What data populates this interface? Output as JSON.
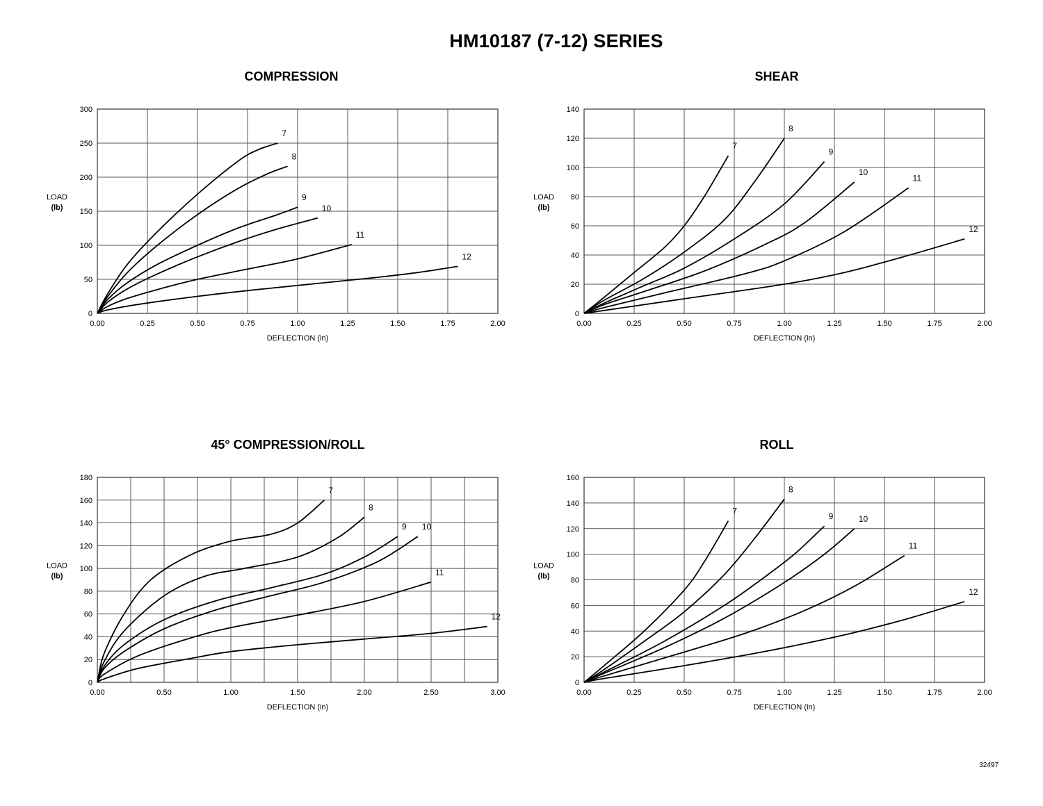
{
  "page": {
    "title": "HM10187 (7-12) SERIES",
    "doc_id": "32497"
  },
  "chart_data": [
    {
      "type": "line",
      "title": "COMPRESSION",
      "xlabel": "DEFLECTION (in)",
      "ylabel": [
        "LOAD",
        "(lb)"
      ],
      "xlim": [
        0,
        2.0
      ],
      "ylim": [
        0,
        300
      ],
      "xticks": [
        "0.00",
        "0.25",
        "0.50",
        "0.75",
        "1.00",
        "1.25",
        "1.50",
        "1.75",
        "2.00"
      ],
      "yticks": [
        "0",
        "50",
        "100",
        "150",
        "200",
        "250",
        "300"
      ],
      "grid": true,
      "series": [
        {
          "name": "7",
          "x": [
            0,
            0.05,
            0.15,
            0.3,
            0.5,
            0.7,
            0.8,
            0.9
          ],
          "y": [
            0,
            28,
            72,
            120,
            175,
            223,
            240,
            250
          ]
        },
        {
          "name": "8",
          "x": [
            0,
            0.05,
            0.15,
            0.3,
            0.5,
            0.7,
            0.85,
            0.95
          ],
          "y": [
            0,
            24,
            60,
            100,
            145,
            183,
            205,
            216
          ]
        },
        {
          "name": "9",
          "x": [
            0,
            0.05,
            0.15,
            0.3,
            0.5,
            0.7,
            0.9,
            1.0
          ],
          "y": [
            0,
            20,
            45,
            72,
            100,
            125,
            145,
            156
          ]
        },
        {
          "name": "10",
          "x": [
            0,
            0.05,
            0.15,
            0.3,
            0.5,
            0.7,
            0.9,
            1.1
          ],
          "y": [
            0,
            16,
            36,
            58,
            83,
            105,
            124,
            140
          ]
        },
        {
          "name": "11",
          "x": [
            0,
            0.05,
            0.15,
            0.3,
            0.5,
            0.75,
            1.0,
            1.27
          ],
          "y": [
            0,
            10,
            22,
            35,
            50,
            65,
            80,
            101
          ]
        },
        {
          "name": "12",
          "x": [
            0,
            0.05,
            0.2,
            0.5,
            0.8,
            1.1,
            1.4,
            1.6,
            1.8
          ],
          "y": [
            0,
            5,
            13,
            25,
            35,
            44,
            53,
            60,
            69
          ]
        }
      ]
    },
    {
      "type": "line",
      "title": "SHEAR",
      "xlabel": "DEFLECTION (in)",
      "ylabel": [
        "LOAD",
        "(lb)"
      ],
      "xlim": [
        0,
        2.0
      ],
      "ylim": [
        0,
        140
      ],
      "xticks": [
        "0.00",
        "0.25",
        "0.50",
        "0.75",
        "1.00",
        "1.25",
        "1.50",
        "1.75",
        "2.00"
      ],
      "yticks": [
        "0",
        "20",
        "40",
        "60",
        "80",
        "100",
        "120",
        "140"
      ],
      "grid": true,
      "series": [
        {
          "name": "7",
          "x": [
            0,
            0.1,
            0.25,
            0.4,
            0.5,
            0.6,
            0.72
          ],
          "y": [
            0,
            11,
            28,
            45,
            60,
            80,
            108
          ]
        },
        {
          "name": "8",
          "x": [
            0,
            0.1,
            0.3,
            0.5,
            0.7,
            0.85,
            1.0
          ],
          "y": [
            0,
            9,
            24,
            42,
            64,
            90,
            120
          ]
        },
        {
          "name": "9",
          "x": [
            0,
            0.1,
            0.3,
            0.5,
            0.75,
            1.0,
            1.2
          ],
          "y": [
            0,
            7,
            19,
            31,
            51,
            75,
            104
          ]
        },
        {
          "name": "10",
          "x": [
            0,
            0.1,
            0.3,
            0.6,
            0.9,
            1.1,
            1.35
          ],
          "y": [
            0,
            6,
            15,
            29,
            47,
            62,
            90
          ]
        },
        {
          "name": "11",
          "x": [
            0,
            0.1,
            0.4,
            0.8,
            1.0,
            1.3,
            1.62
          ],
          "y": [
            0,
            4,
            14,
            27,
            36,
            56,
            86
          ]
        },
        {
          "name": "12",
          "x": [
            0,
            0.1,
            0.5,
            1.0,
            1.3,
            1.6,
            1.9
          ],
          "y": [
            0,
            2,
            10,
            20,
            28,
            39,
            51
          ]
        }
      ]
    },
    {
      "type": "line",
      "title": "45° COMPRESSION/ROLL",
      "xlabel": "DEFLECTION (in)",
      "ylabel": [
        "LOAD",
        "(lb)"
      ],
      "xlim": [
        0,
        3.0
      ],
      "ylim": [
        0,
        180
      ],
      "xticks": [
        "0.00",
        "0.50",
        "1.00",
        "1.50",
        "2.00",
        "2.50",
        "3.00"
      ],
      "yticks": [
        "0",
        "20",
        "40",
        "60",
        "80",
        "100",
        "120",
        "140",
        "160",
        "180"
      ],
      "grid": true,
      "grid_x_step": 0.25,
      "series": [
        {
          "name": "7",
          "x": [
            0,
            0.05,
            0.2,
            0.4,
            0.7,
            1.0,
            1.3,
            1.5,
            1.7
          ],
          "y": [
            0,
            25,
            60,
            90,
            112,
            124,
            130,
            140,
            160
          ]
        },
        {
          "name": "8",
          "x": [
            0,
            0.05,
            0.2,
            0.5,
            0.8,
            1.1,
            1.5,
            1.8,
            2.0
          ],
          "y": [
            0,
            18,
            45,
            76,
            93,
            100,
            110,
            127,
            145
          ]
        },
        {
          "name": "9",
          "x": [
            0,
            0.05,
            0.2,
            0.5,
            0.9,
            1.3,
            1.7,
            2.0,
            2.25
          ],
          "y": [
            0,
            14,
            33,
            55,
            72,
            83,
            95,
            110,
            128
          ]
        },
        {
          "name": "10",
          "x": [
            0,
            0.05,
            0.2,
            0.5,
            0.9,
            1.3,
            1.7,
            2.1,
            2.4
          ],
          "y": [
            0,
            12,
            27,
            47,
            64,
            76,
            88,
            106,
            128
          ]
        },
        {
          "name": "11",
          "x": [
            0,
            0.05,
            0.3,
            0.7,
            1.0,
            1.5,
            2.0,
            2.5
          ],
          "y": [
            0,
            7,
            23,
            39,
            48,
            59,
            71,
            88
          ]
        },
        {
          "name": "12",
          "x": [
            0,
            0.05,
            0.3,
            0.7,
            1.0,
            1.5,
            2.0,
            2.5,
            2.92
          ],
          "y": [
            0,
            3,
            12,
            21,
            27,
            33,
            38,
            43,
            49
          ]
        }
      ]
    },
    {
      "type": "line",
      "title": "ROLL",
      "xlabel": "DEFLECTION (in)",
      "ylabel": [
        "LOAD",
        "(lb)"
      ],
      "xlim": [
        0,
        2.0
      ],
      "ylim": [
        0,
        160
      ],
      "xticks": [
        "0.00",
        "0.25",
        "0.50",
        "0.75",
        "1.00",
        "1.25",
        "1.50",
        "1.75",
        "2.00"
      ],
      "yticks": [
        "0",
        "20",
        "40",
        "60",
        "80",
        "100",
        "120",
        "140",
        "160"
      ],
      "grid": true,
      "series": [
        {
          "name": "7",
          "x": [
            0,
            0.1,
            0.3,
            0.5,
            0.6,
            0.72
          ],
          "y": [
            0,
            13,
            40,
            72,
            94,
            126
          ]
        },
        {
          "name": "8",
          "x": [
            0,
            0.1,
            0.3,
            0.5,
            0.7,
            0.85,
            1.0
          ],
          "y": [
            0,
            10,
            32,
            55,
            84,
            112,
            143
          ]
        },
        {
          "name": "9",
          "x": [
            0,
            0.1,
            0.4,
            0.7,
            0.9,
            1.05,
            1.2
          ],
          "y": [
            0,
            8,
            32,
            60,
            82,
            100,
            122
          ]
        },
        {
          "name": "10",
          "x": [
            0,
            0.1,
            0.4,
            0.7,
            1.0,
            1.2,
            1.35
          ],
          "y": [
            0,
            7,
            27,
            50,
            78,
            100,
            120
          ]
        },
        {
          "name": "11",
          "x": [
            0,
            0.1,
            0.4,
            0.8,
            1.1,
            1.35,
            1.6
          ],
          "y": [
            0,
            5,
            19,
            38,
            56,
            75,
            99
          ]
        },
        {
          "name": "12",
          "x": [
            0,
            0.1,
            0.5,
            0.9,
            1.3,
            1.6,
            1.9
          ],
          "y": [
            0,
            3,
            13,
            24,
            37,
            49,
            63
          ]
        }
      ]
    }
  ]
}
